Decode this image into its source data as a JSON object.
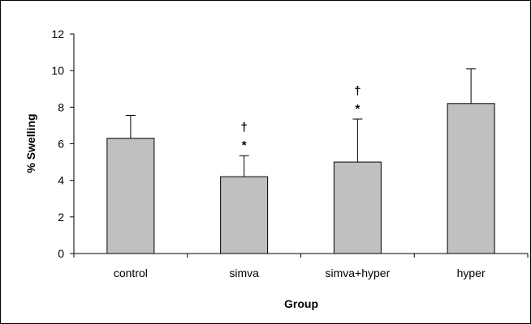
{
  "chart_data": {
    "type": "bar",
    "title": "",
    "xlabel": "Group",
    "ylabel": "% Swelling",
    "categories": [
      "control",
      "simva",
      "simva+hyper",
      "hyper"
    ],
    "values": [
      6.3,
      4.2,
      5.0,
      8.2
    ],
    "error_upper": [
      1.25,
      1.15,
      2.35,
      1.9
    ],
    "ylim": [
      0,
      12
    ],
    "yticks": [
      0,
      2,
      4,
      6,
      8,
      10,
      12
    ],
    "ytick_labels": [
      "0",
      "2",
      "4",
      "6",
      "8",
      "10",
      "12"
    ],
    "grid": false,
    "legend": "none",
    "bar_color": "#c0c0c0",
    "annotations": [
      {
        "category": "simva",
        "symbols": [
          "†",
          "*"
        ]
      },
      {
        "category": "simva+hyper",
        "symbols": [
          "†",
          "*"
        ]
      }
    ]
  }
}
